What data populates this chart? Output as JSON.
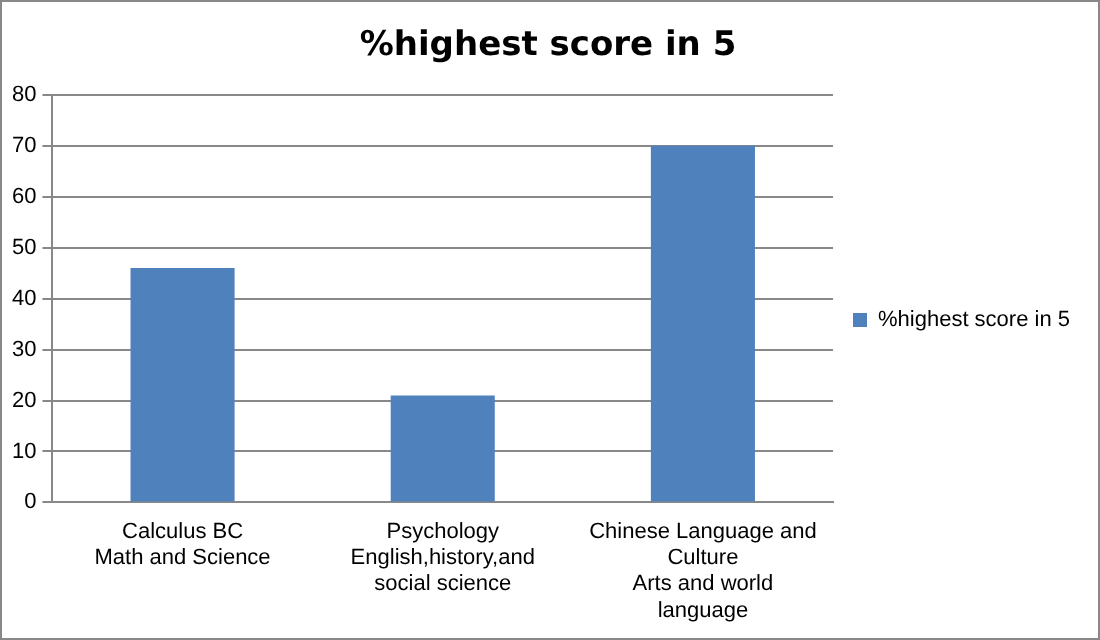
{
  "chart_data": {
    "type": "bar",
    "title": "%highest score in 5",
    "categories": [
      "Calculus BC\nMath and Science",
      "Psychology\nEnglish,history,and social science",
      "Chinese Language and Culture\nArts and world language"
    ],
    "series": [
      {
        "name": "%highest score in 5",
        "color": "#4f81bd",
        "values": [
          46,
          21,
          70
        ]
      }
    ],
    "ylim": [
      0,
      80
    ],
    "yticks": [
      0,
      10,
      20,
      30,
      40,
      50,
      60,
      70,
      80
    ],
    "grid": "y",
    "legend": "right"
  }
}
